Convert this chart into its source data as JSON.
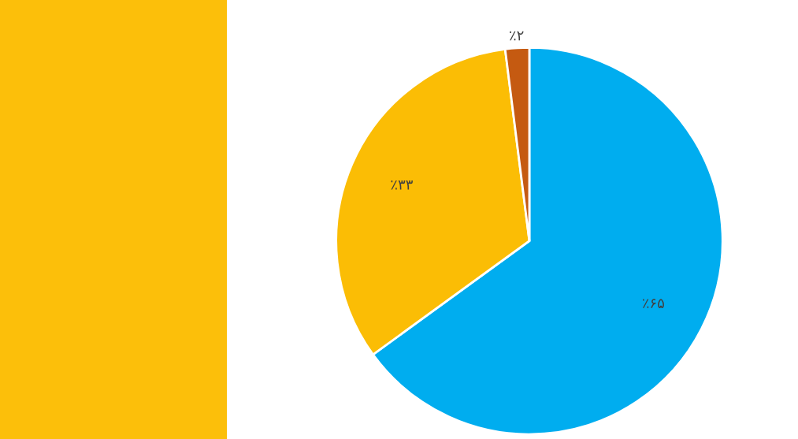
{
  "chart_data": {
    "type": "pie",
    "categories": [
      null,
      null,
      null
    ],
    "values": [
      65,
      33,
      2
    ],
    "colors": [
      "#00adef",
      "#fbbd05",
      "#c55a11"
    ],
    "value_labels": [
      "٪۶۵",
      "٪۳۳",
      "٪۲"
    ]
  }
}
